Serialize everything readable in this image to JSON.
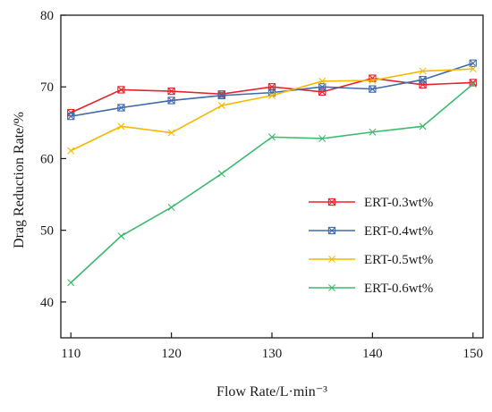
{
  "chart_data": {
    "type": "line",
    "xlabel": "Flow Rate/L·min⁻³",
    "ylabel": "Drag Reduction Rate/%",
    "xlim": [
      109,
      151
    ],
    "ylim": [
      35,
      80
    ],
    "xticks": [
      110,
      120,
      130,
      140,
      150
    ],
    "yticks": [
      40,
      50,
      60,
      70,
      80
    ],
    "grid": false,
    "legend_position": "right",
    "x": [
      110,
      115,
      120,
      125,
      130,
      135,
      140,
      145,
      150
    ],
    "series": [
      {
        "name": "ERT-0.3wt%",
        "color": "#e8222a",
        "marker": "x-square",
        "values": [
          66.4,
          69.6,
          69.4,
          69.0,
          70.0,
          69.3,
          71.2,
          70.3,
          70.6
        ]
      },
      {
        "name": "ERT-0.4wt%",
        "color": "#3f6aab",
        "marker": "x-square",
        "values": [
          65.9,
          67.1,
          68.1,
          68.8,
          69.2,
          70.0,
          69.7,
          71.0,
          73.3
        ]
      },
      {
        "name": "ERT-0.5wt%",
        "color": "#f5b800",
        "marker": "x",
        "values": [
          61.1,
          64.5,
          63.6,
          67.4,
          68.8,
          70.8,
          70.9,
          72.2,
          72.5
        ]
      },
      {
        "name": "ERT-0.6wt%",
        "color": "#3cba6e",
        "marker": "x",
        "values": [
          42.7,
          49.2,
          53.2,
          57.9,
          63.0,
          62.8,
          63.7,
          64.5,
          70.4
        ]
      }
    ]
  }
}
